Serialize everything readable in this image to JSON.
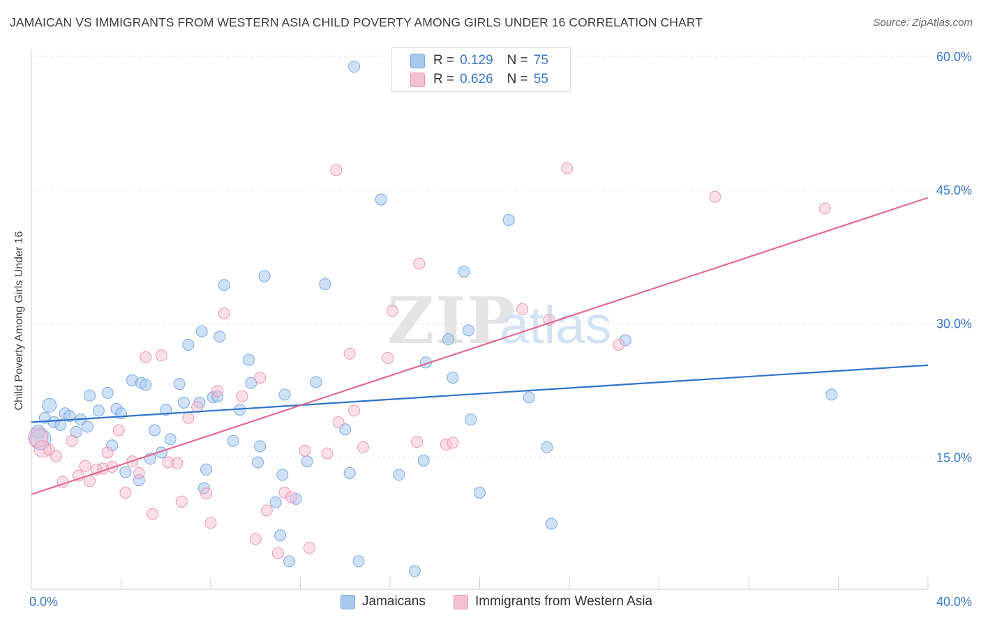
{
  "title": "JAMAICAN VS IMMIGRANTS FROM WESTERN ASIA CHILD POVERTY AMONG GIRLS UNDER 16 CORRELATION CHART",
  "source": "Source: ZipAtlas.com",
  "watermark": {
    "zip": "ZIP",
    "atlas": "atlas"
  },
  "legend": {
    "rows": [
      {
        "r_label": "R =",
        "r_value": "0.129",
        "n_label": "N =",
        "n_value": "75"
      },
      {
        "r_label": "R =",
        "r_value": "0.626",
        "n_label": "N =",
        "n_value": "55"
      }
    ]
  },
  "chart_data": {
    "type": "scatter",
    "title": "JAMAICAN VS IMMIGRANTS FROM WESTERN ASIA CHILD POVERTY AMONG GIRLS UNDER 16 CORRELATION CHART",
    "xlabel": "",
    "ylabel": "Child Poverty Among Girls Under 16",
    "xlim": [
      0,
      40
    ],
    "ylim": [
      0,
      63
    ],
    "x_tick_labels": [
      "0.0%",
      "40.0%"
    ],
    "y_ticks": [
      15,
      30,
      45,
      60
    ],
    "y_tick_labels": [
      "15.0%",
      "30.0%",
      "45.0%",
      "60.0%"
    ],
    "grid": true,
    "legend_position": "top-center",
    "colors": {
      "blue_fill": "#a8c8f0",
      "blue_line": "#2f72cc",
      "pink_fill": "#f5b8cb",
      "pink_line": "#e06a94",
      "value_text": "#3a78c9"
    },
    "series": [
      {
        "name": "Jamaicans",
        "color": "#a8c8f0",
        "trend": {
          "x": [
            0,
            40
          ],
          "y": [
            18.9,
            25.3
          ]
        },
        "points": [
          [
            0.3,
            17.8
          ],
          [
            0.4,
            17.0
          ],
          [
            0.6,
            19.4
          ],
          [
            0.8,
            20.8
          ],
          [
            1.0,
            18.9
          ],
          [
            1.3,
            18.6
          ],
          [
            1.5,
            19.9
          ],
          [
            1.7,
            19.6
          ],
          [
            2.0,
            17.8
          ],
          [
            2.2,
            19.2
          ],
          [
            2.5,
            18.4
          ],
          [
            2.6,
            21.9
          ],
          [
            3.0,
            20.2
          ],
          [
            3.4,
            22.2
          ],
          [
            3.6,
            16.3
          ],
          [
            3.8,
            20.4
          ],
          [
            4.0,
            19.9
          ],
          [
            4.2,
            13.3
          ],
          [
            4.5,
            23.6
          ],
          [
            4.8,
            12.4
          ],
          [
            4.9,
            23.3
          ],
          [
            5.1,
            23.1
          ],
          [
            5.3,
            14.8
          ],
          [
            5.5,
            18.0
          ],
          [
            5.8,
            15.5
          ],
          [
            6.0,
            20.3
          ],
          [
            6.2,
            17.0
          ],
          [
            6.6,
            23.2
          ],
          [
            6.8,
            21.1
          ],
          [
            7.0,
            27.6
          ],
          [
            7.5,
            21.1
          ],
          [
            7.6,
            29.1
          ],
          [
            7.7,
            11.5
          ],
          [
            7.8,
            13.6
          ],
          [
            8.1,
            21.7
          ],
          [
            8.3,
            21.8
          ],
          [
            8.4,
            28.5
          ],
          [
            8.6,
            34.3
          ],
          [
            9.0,
            16.8
          ],
          [
            9.3,
            20.3
          ],
          [
            9.7,
            25.9
          ],
          [
            9.8,
            23.3
          ],
          [
            10.1,
            14.4
          ],
          [
            10.2,
            16.2
          ],
          [
            10.4,
            35.3
          ],
          [
            10.9,
            9.9
          ],
          [
            11.1,
            6.2
          ],
          [
            11.2,
            13.0
          ],
          [
            11.3,
            22.0
          ],
          [
            11.8,
            10.3
          ],
          [
            12.3,
            14.5
          ],
          [
            12.7,
            23.4
          ],
          [
            13.1,
            34.4
          ],
          [
            14.0,
            18.1
          ],
          [
            14.2,
            13.2
          ],
          [
            14.4,
            58.8
          ],
          [
            14.6,
            3.3
          ],
          [
            15.6,
            43.9
          ],
          [
            16.4,
            13.0
          ],
          [
            17.1,
            2.2
          ],
          [
            17.5,
            14.6
          ],
          [
            17.6,
            25.6
          ],
          [
            18.6,
            28.2
          ],
          [
            18.8,
            23.9
          ],
          [
            19.3,
            35.8
          ],
          [
            19.5,
            29.2
          ],
          [
            19.6,
            19.2
          ],
          [
            20.0,
            11.0
          ],
          [
            21.3,
            41.6
          ],
          [
            22.2,
            21.7
          ],
          [
            23.0,
            16.1
          ],
          [
            23.2,
            7.5
          ],
          [
            26.5,
            28.1
          ],
          [
            35.7,
            22.0
          ],
          [
            11.5,
            3.3
          ]
        ]
      },
      {
        "name": "Immigrants from Western Asia",
        "color": "#f5b8cb",
        "trend": {
          "x": [
            0,
            40
          ],
          "y": [
            10.8,
            44.1
          ]
        },
        "points": [
          [
            0.3,
            17.2
          ],
          [
            0.5,
            15.9
          ],
          [
            0.8,
            15.8
          ],
          [
            1.1,
            15.1
          ],
          [
            1.4,
            12.2
          ],
          [
            1.8,
            16.8
          ],
          [
            2.1,
            12.9
          ],
          [
            2.4,
            14.0
          ],
          [
            2.6,
            12.3
          ],
          [
            2.9,
            13.6
          ],
          [
            3.2,
            13.7
          ],
          [
            3.4,
            15.5
          ],
          [
            3.6,
            13.9
          ],
          [
            3.9,
            18.0
          ],
          [
            4.2,
            11.0
          ],
          [
            4.5,
            14.5
          ],
          [
            4.8,
            13.2
          ],
          [
            5.1,
            26.2
          ],
          [
            5.4,
            8.6
          ],
          [
            5.8,
            26.4
          ],
          [
            6.1,
            14.4
          ],
          [
            6.5,
            14.3
          ],
          [
            6.7,
            10.0
          ],
          [
            7.0,
            19.4
          ],
          [
            7.4,
            20.6
          ],
          [
            7.8,
            10.9
          ],
          [
            8.0,
            7.6
          ],
          [
            8.3,
            22.4
          ],
          [
            8.6,
            31.1
          ],
          [
            9.4,
            21.8
          ],
          [
            10.0,
            5.8
          ],
          [
            10.2,
            23.9
          ],
          [
            10.5,
            9.0
          ],
          [
            11.0,
            4.2
          ],
          [
            11.3,
            11.0
          ],
          [
            11.6,
            10.5
          ],
          [
            12.2,
            15.7
          ],
          [
            12.4,
            4.8
          ],
          [
            13.2,
            15.4
          ],
          [
            13.6,
            47.2
          ],
          [
            13.7,
            18.9
          ],
          [
            14.2,
            26.6
          ],
          [
            14.4,
            20.2
          ],
          [
            14.8,
            16.1
          ],
          [
            15.9,
            26.1
          ],
          [
            16.1,
            31.4
          ],
          [
            17.2,
            16.7
          ],
          [
            17.3,
            36.7
          ],
          [
            18.5,
            16.4
          ],
          [
            18.8,
            16.6
          ],
          [
            21.9,
            31.6
          ],
          [
            23.1,
            30.4
          ],
          [
            23.9,
            47.4
          ],
          [
            26.2,
            27.6
          ],
          [
            30.5,
            44.2
          ]
        ]
      }
    ],
    "extra_pink_point": [
      35.4,
      42.9
    ]
  },
  "bottom_legend": {
    "items": [
      "Jamaicans",
      "Immigrants from Western Asia"
    ]
  }
}
